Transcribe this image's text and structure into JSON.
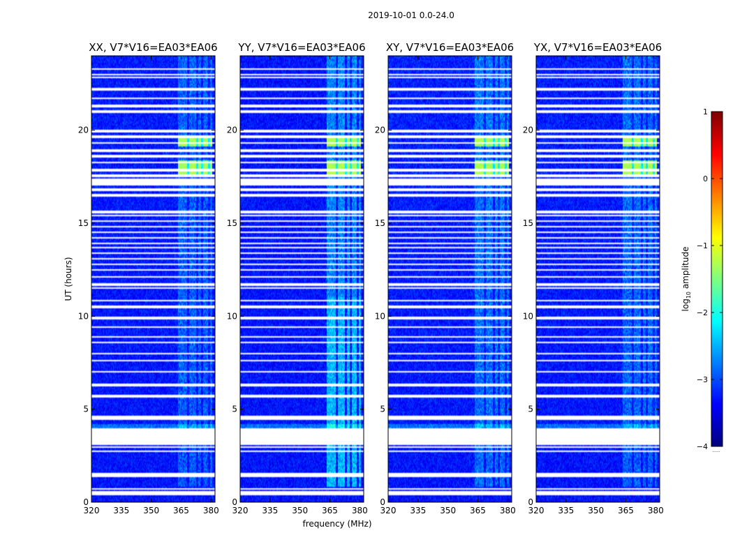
{
  "figure": {
    "suptitle": "2019-10-01 0.0-24.0",
    "xlabel": "frequency (MHz)",
    "ylabel": "UT (hours)",
    "colorbar_label_main": "log",
    "colorbar_label_sub": "10",
    "colorbar_label_tail": " amplitude",
    "colorbar_dots": "......"
  },
  "chart_data": {
    "type": "heatmap",
    "description": "Dynamic spectra, four polarization panels",
    "x_range": [
      320,
      382
    ],
    "y_range": [
      0,
      24
    ],
    "x_ticks": [
      320,
      335,
      350,
      365,
      380
    ],
    "y_ticks": [
      0,
      5,
      10,
      15,
      20
    ],
    "panels": [
      {
        "title": "XX, V7*V16=EA03*EA06",
        "id": "xx",
        "leak": 1.0,
        "top_bias": 0.05
      },
      {
        "title": "YY, V7*V16=EA03*EA06",
        "id": "yy",
        "leak": 1.6,
        "top_bias": 0.0
      },
      {
        "title": "XY, V7*V16=EA03*EA06",
        "id": "xy",
        "leak": 1.2,
        "top_bias": 0.08
      },
      {
        "title": "YX, V7*V16=EA03*EA06",
        "id": "yx",
        "leak": 1.1,
        "top_bias": 0.06
      }
    ],
    "colorbar": {
      "min": -4,
      "max": 1,
      "ticks": [
        -4,
        -3,
        -2,
        -1,
        0,
        1
      ],
      "colormap": "jet"
    },
    "noise_level_log10": -3.3,
    "rfi_bands_mhz": [
      [
        363.5,
        368.0
      ],
      [
        369.0,
        372.5
      ],
      [
        373.5,
        375.0
      ],
      [
        376.0,
        378.5
      ],
      [
        379.5,
        380.5
      ]
    ],
    "rfi_time_range_hours": [
      0.8,
      24.0
    ],
    "strong_rfi_time_ranges_hours": [
      [
        17.6,
        18.4
      ],
      [
        19.1,
        19.6
      ]
    ],
    "strong_rfi_level_log10": -1.3,
    "flagged_time_ranges_hours": [
      [
        3.1,
        4.0
      ],
      [
        1.45,
        1.55
      ],
      [
        20.95,
        21.05
      ],
      [
        17.0,
        17.4
      ],
      [
        0.55,
        0.62
      ],
      [
        22.8,
        22.85
      ]
    ],
    "flagged_lines_hours": [
      0.45,
      0.72,
      1.4,
      2.75,
      2.95,
      4.5,
      4.6,
      5.7,
      6.3,
      7.0,
      7.6,
      8.0,
      8.6,
      8.9,
      9.4,
      9.9,
      10.5,
      10.85,
      11.5,
      11.7,
      12.1,
      12.5,
      12.8,
      13.1,
      13.4,
      13.7,
      13.9,
      14.2,
      14.5,
      14.8,
      15.1,
      15.4,
      15.6,
      16.5,
      16.8,
      17.55,
      17.85,
      18.25,
      18.6,
      18.9,
      19.3,
      19.65,
      19.95,
      21.3,
      21.7,
      22.2,
      23.0,
      23.3
    ]
  }
}
